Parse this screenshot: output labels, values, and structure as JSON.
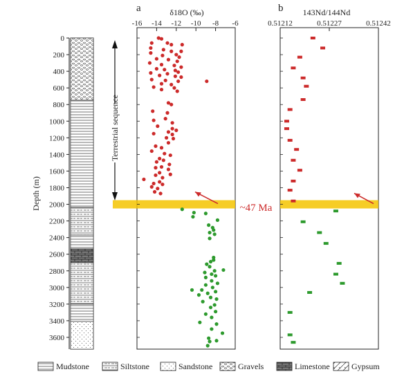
{
  "chart_data": [
    {
      "type": "scatter",
      "panel": "a",
      "title": "δ18O (‰)",
      "xlabel": "δ18O (‰)",
      "ylabel": "Depth (m)",
      "xlim": [
        -16,
        -6
      ],
      "ylim": [
        3700,
        0
      ],
      "x_ticks": [
        -16,
        -14,
        -12,
        -10,
        -8,
        -6
      ],
      "y_ticks": [
        0,
        200,
        400,
        600,
        800,
        1000,
        1200,
        1400,
        1600,
        1800,
        2000,
        2200,
        2400,
        2600,
        2800,
        3000,
        3200,
        3400,
        3600
      ],
      "annotation": "Terrestrial sequence",
      "boundary_label": "~47 Ma",
      "boundary_depth": 2000,
      "series": [
        {
          "color": "#cc2a2a",
          "marker": "circle",
          "points": [
            [
              -13.8,
              0
            ],
            [
              -13.5,
              10
            ],
            [
              -14.5,
              60
            ],
            [
              -12.9,
              60
            ],
            [
              -12.5,
              80
            ],
            [
              -11.4,
              80
            ],
            [
              -14.6,
              120
            ],
            [
              -13.3,
              140
            ],
            [
              -12.5,
              160
            ],
            [
              -11.5,
              160
            ],
            [
              -14.6,
              180
            ],
            [
              -12.0,
              200
            ],
            [
              -13.4,
              210
            ],
            [
              -11.7,
              230
            ],
            [
              -14.0,
              250
            ],
            [
              -12.8,
              260
            ],
            [
              -11.9,
              280
            ],
            [
              -14.7,
              300
            ],
            [
              -13.5,
              320
            ],
            [
              -12.2,
              330
            ],
            [
              -11.5,
              350
            ],
            [
              -14.0,
              370
            ],
            [
              -13.2,
              380
            ],
            [
              -12.1,
              390
            ],
            [
              -11.8,
              410
            ],
            [
              -14.6,
              420
            ],
            [
              -12.9,
              430
            ],
            [
              -13.7,
              450
            ],
            [
              -12.1,
              460
            ],
            [
              -11.5,
              470
            ],
            [
              -14.5,
              500
            ],
            [
              -13.1,
              510
            ],
            [
              -11.8,
              520
            ],
            [
              -8.9,
              520
            ],
            [
              -13.5,
              550
            ],
            [
              -12.5,
              560
            ],
            [
              -14.3,
              590
            ],
            [
              -12.2,
              600
            ],
            [
              -13.5,
              620
            ],
            [
              -11.9,
              640
            ],
            [
              -12.8,
              780
            ],
            [
              -12.5,
              800
            ],
            [
              -14.4,
              880
            ],
            [
              -12.9,
              900
            ],
            [
              -13.1,
              970
            ],
            [
              -14.3,
              990
            ],
            [
              -12.4,
              1020
            ],
            [
              -13.9,
              1060
            ],
            [
              -12.4,
              1090
            ],
            [
              -12.0,
              1110
            ],
            [
              -12.8,
              1130
            ],
            [
              -14.3,
              1150
            ],
            [
              -12.4,
              1160
            ],
            [
              -13.0,
              1200
            ],
            [
              -12.3,
              1210
            ],
            [
              -12.8,
              1260
            ],
            [
              -14.1,
              1300
            ],
            [
              -13.5,
              1320
            ],
            [
              -14.5,
              1360
            ],
            [
              -13.2,
              1390
            ],
            [
              -12.6,
              1410
            ],
            [
              -13.7,
              1450
            ],
            [
              -13.3,
              1470
            ],
            [
              -14.0,
              1490
            ],
            [
              -12.7,
              1520
            ],
            [
              -13.5,
              1550
            ],
            [
              -14.1,
              1560
            ],
            [
              -12.8,
              1580
            ],
            [
              -13.7,
              1620
            ],
            [
              -12.6,
              1640
            ],
            [
              -14.1,
              1650
            ],
            [
              -13.4,
              1680
            ],
            [
              -15.3,
              1700
            ],
            [
              -13.7,
              1730
            ],
            [
              -14.3,
              1750
            ],
            [
              -13.4,
              1760
            ],
            [
              -14.5,
              1790
            ],
            [
              -13.9,
              1810
            ],
            [
              -14.2,
              1850
            ],
            [
              -13.6,
              1870
            ]
          ]
        },
        {
          "color": "#2d9a2d",
          "marker": "circle",
          "points": [
            [
              -11.4,
              2060
            ],
            [
              -10.2,
              2100
            ],
            [
              -9.0,
              2110
            ],
            [
              -10.3,
              2150
            ],
            [
              -7.8,
              2190
            ],
            [
              -8.7,
              2250
            ],
            [
              -8.3,
              2280
            ],
            [
              -8.2,
              2310
            ],
            [
              -8.6,
              2340
            ],
            [
              -8.1,
              2360
            ],
            [
              -8.6,
              2410
            ],
            [
              -8.2,
              2640
            ],
            [
              -8.2,
              2670
            ],
            [
              -8.5,
              2690
            ],
            [
              -8.9,
              2720
            ],
            [
              -8.6,
              2750
            ],
            [
              -7.2,
              2790
            ],
            [
              -8.1,
              2800
            ],
            [
              -9.1,
              2820
            ],
            [
              -8.4,
              2840
            ],
            [
              -8.0,
              2860
            ],
            [
              -9.0,
              2880
            ],
            [
              -8.4,
              2920
            ],
            [
              -7.8,
              2950
            ],
            [
              -9.0,
              2970
            ],
            [
              -8.3,
              3000
            ],
            [
              -9.4,
              3030
            ],
            [
              -10.4,
              3030
            ],
            [
              -8.0,
              3050
            ],
            [
              -8.8,
              3070
            ],
            [
              -9.7,
              3090
            ],
            [
              -8.5,
              3120
            ],
            [
              -7.9,
              3140
            ],
            [
              -9.3,
              3170
            ],
            [
              -8.1,
              3210
            ],
            [
              -8.5,
              3240
            ],
            [
              -8.0,
              3290
            ],
            [
              -9.0,
              3320
            ],
            [
              -8.4,
              3360
            ],
            [
              -9.6,
              3420
            ],
            [
              -7.9,
              3440
            ],
            [
              -8.4,
              3500
            ],
            [
              -7.3,
              3550
            ],
            [
              -8.7,
              3610
            ],
            [
              -7.9,
              3640
            ],
            [
              -8.6,
              3650
            ],
            [
              -8.8,
              3700
            ]
          ]
        }
      ]
    },
    {
      "type": "scatter",
      "panel": "b",
      "title": "143Nd/144Nd",
      "xlabel": "143Nd/144Nd",
      "xlim": [
        0.51212,
        0.51242
      ],
      "ylim": [
        3700,
        0
      ],
      "x_ticks": [
        0.51212,
        0.51227,
        0.51242
      ],
      "series": [
        {
          "color": "#cc2a2a",
          "marker": "square",
          "points": [
            [
              0.51222,
              0
            ],
            [
              0.51225,
              120
            ],
            [
              0.51218,
              230
            ],
            [
              0.51216,
              360
            ],
            [
              0.51219,
              480
            ],
            [
              0.5122,
              580
            ],
            [
              0.51219,
              740
            ],
            [
              0.51215,
              860
            ],
            [
              0.51214,
              1000
            ],
            [
              0.51214,
              1090
            ],
            [
              0.51215,
              1230
            ],
            [
              0.51217,
              1340
            ],
            [
              0.51216,
              1470
            ],
            [
              0.51218,
              1590
            ],
            [
              0.51216,
              1720
            ],
            [
              0.51215,
              1830
            ],
            [
              0.51216,
              1960
            ]
          ]
        },
        {
          "color": "#2d9a2d",
          "marker": "square",
          "points": [
            [
              0.51229,
              2080
            ],
            [
              0.51219,
              2210
            ],
            [
              0.51224,
              2340
            ],
            [
              0.51226,
              2470
            ],
            [
              0.5123,
              2710
            ],
            [
              0.51229,
              2840
            ],
            [
              0.51231,
              2950
            ],
            [
              0.51221,
              3060
            ],
            [
              0.51215,
              3300
            ],
            [
              0.51215,
              3570
            ],
            [
              0.51216,
              3660
            ]
          ]
        }
      ]
    }
  ],
  "panels": {
    "a": {
      "letter": "a"
    },
    "b": {
      "letter": "b"
    }
  },
  "column_labels": {
    "depth_ticks": [
      "0",
      "200",
      "400",
      "600",
      "800",
      "1000",
      "1200",
      "1400",
      "1600",
      "1800",
      "2000",
      "2200",
      "2400",
      "2600",
      "2800",
      "3000",
      "3200",
      "3400",
      "3600"
    ],
    "depth_axis_label": "Depth (m)"
  },
  "lithology_legend": [
    {
      "label": "Mudstone",
      "pattern": "mudstone"
    },
    {
      "label": "Siltstone",
      "pattern": "siltstone"
    },
    {
      "label": "Sandstone",
      "pattern": "sandstone"
    },
    {
      "label": "Gravels",
      "pattern": "gravels"
    },
    {
      "label": "Limestone",
      "pattern": "limestone"
    },
    {
      "label": "Gypsum",
      "pattern": "gypsum"
    }
  ],
  "colors": {
    "red": "#cc2a2a",
    "green": "#2d9a2d",
    "band": "#f5c400",
    "arrow": "#cc2a2a"
  }
}
